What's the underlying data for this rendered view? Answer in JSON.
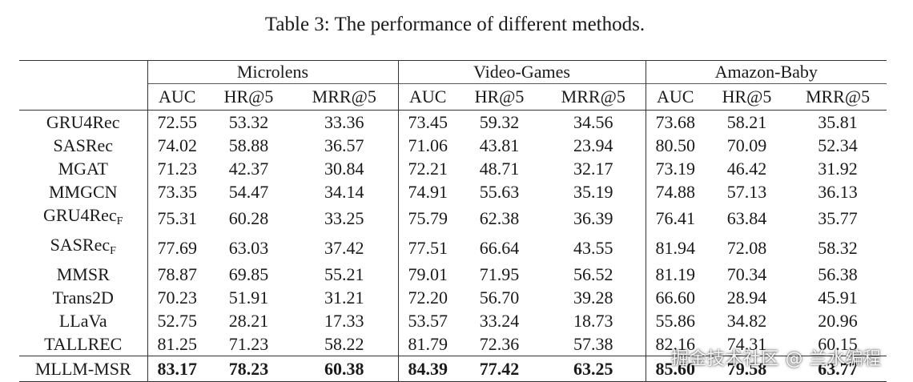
{
  "caption": "Table 3: The performance of different methods.",
  "groups": [
    "Microlens",
    "Video-Games",
    "Amazon-Baby"
  ],
  "metrics": [
    "AUC",
    "HR@5",
    "MRR@5",
    "AUC",
    "HR@5",
    "MRR@5",
    "AUC",
    "HR@5",
    "MRR@5"
  ],
  "rows": [
    {
      "name": "GRU4Rec",
      "sub": "",
      "v": [
        "72.55",
        "53.32",
        "33.36",
        "73.45",
        "59.32",
        "34.56",
        "73.68",
        "58.21",
        "35.81"
      ]
    },
    {
      "name": "SASRec",
      "sub": "",
      "v": [
        "74.02",
        "58.88",
        "36.57",
        "71.06",
        "43.81",
        "23.94",
        "80.50",
        "70.09",
        "52.34"
      ]
    },
    {
      "name": "MGAT",
      "sub": "",
      "v": [
        "71.23",
        "42.37",
        "30.84",
        "72.21",
        "48.71",
        "32.17",
        "73.19",
        "46.42",
        "31.92"
      ]
    },
    {
      "name": "MMGCN",
      "sub": "",
      "v": [
        "73.35",
        "54.47",
        "34.14",
        "74.91",
        "55.63",
        "35.19",
        "74.88",
        "57.13",
        "36.13"
      ]
    },
    {
      "name": "GRU4Rec",
      "sub": "F",
      "v": [
        "75.31",
        "60.28",
        "33.25",
        "75.79",
        "62.38",
        "36.39",
        "76.41",
        "63.84",
        "35.77"
      ]
    },
    {
      "name": "SASRec",
      "sub": "F",
      "v": [
        "77.69",
        "63.03",
        "37.42",
        "77.51",
        "66.64",
        "43.55",
        "81.94",
        "72.08",
        "58.32"
      ]
    },
    {
      "name": "MMSR",
      "sub": "",
      "v": [
        "78.87",
        "69.85",
        "55.21",
        "79.01",
        "71.95",
        "56.52",
        "81.19",
        "70.34",
        "56.38"
      ]
    },
    {
      "name": "Trans2D",
      "sub": "",
      "v": [
        "70.23",
        "51.91",
        "31.21",
        "72.20",
        "56.70",
        "39.28",
        "66.60",
        "28.94",
        "45.91"
      ]
    },
    {
      "name": "LLaVa",
      "sub": "",
      "v": [
        "52.75",
        "28.21",
        "17.33",
        "53.57",
        "33.24",
        "18.73",
        "55.86",
        "34.82",
        "20.96"
      ]
    },
    {
      "name": "TALLREC",
      "sub": "",
      "v": [
        "81.25",
        "71.23",
        "58.22",
        "81.79",
        "72.36",
        "57.38",
        "82.16",
        "74.31",
        "60.15"
      ]
    },
    {
      "name": "MLLM-MSR",
      "sub": "",
      "v": [
        "83.17",
        "78.23",
        "60.38",
        "84.39",
        "77.42",
        "63.25",
        "85.60",
        "79.58",
        "63.77"
      ]
    }
  ],
  "watermark": "掘金技术社区 @ 兰水编程"
}
